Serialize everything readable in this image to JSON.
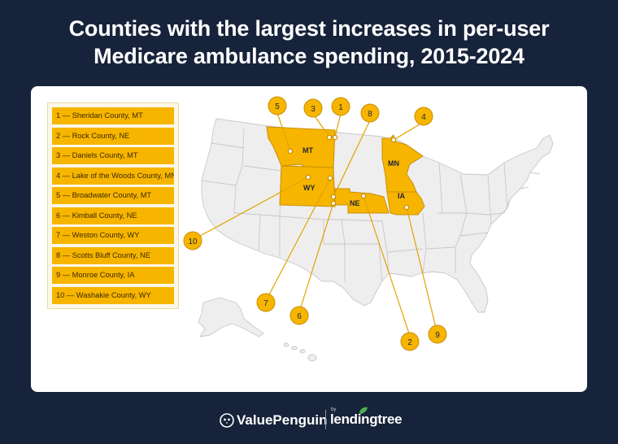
{
  "title": {
    "line1": "Counties with the largest increases in per-user",
    "line2": "Medicare ambulance spending, 2015-2024"
  },
  "legend": [
    {
      "rank": 1,
      "label": "1 — Sheridan County, MT"
    },
    {
      "rank": 2,
      "label": "2 — Rock County, NE"
    },
    {
      "rank": 3,
      "label": "3 — Daniels County, MT"
    },
    {
      "rank": 4,
      "label": "4 — Lake of the Woods County, MN"
    },
    {
      "rank": 5,
      "label": "5 — Broadwater County, MT"
    },
    {
      "rank": 6,
      "label": "6 — Kimball County, NE"
    },
    {
      "rank": 7,
      "label": "7 — Weston County, WY"
    },
    {
      "rank": 8,
      "label": "8 — Scotts Bluff County, NE"
    },
    {
      "rank": 9,
      "label": "9 — Monroe County, IA"
    },
    {
      "rank": 10,
      "label": "10 — Washakie County, WY"
    }
  ],
  "highlighted_states": [
    {
      "abbr": "MT",
      "name": "Montana"
    },
    {
      "abbr": "WY",
      "name": "Wyoming"
    },
    {
      "abbr": "NE",
      "name": "Nebraska"
    },
    {
      "abbr": "MN",
      "name": "Minnesota"
    },
    {
      "abbr": "IA",
      "name": "Iowa"
    }
  ],
  "markers": [
    {
      "rank": "1",
      "county": "Sheridan County",
      "state": "MT"
    },
    {
      "rank": "2",
      "county": "Rock County",
      "state": "NE"
    },
    {
      "rank": "3",
      "county": "Daniels County",
      "state": "MT"
    },
    {
      "rank": "4",
      "county": "Lake of the Woods County",
      "state": "MN"
    },
    {
      "rank": "5",
      "county": "Broadwater County",
      "state": "MT"
    },
    {
      "rank": "6",
      "county": "Kimball County",
      "state": "NE"
    },
    {
      "rank": "7",
      "county": "Weston County",
      "state": "WY"
    },
    {
      "rank": "8",
      "county": "Scotts Bluff County",
      "state": "NE"
    },
    {
      "rank": "9",
      "county": "Monroe County",
      "state": "IA"
    },
    {
      "rank": "10",
      "county": "Washakie County",
      "state": "WY"
    }
  ],
  "colors": {
    "background": "#16233a",
    "highlight": "#f7b500",
    "state_fill": "#eeeeee",
    "state_stroke": "#c8c8c8"
  },
  "footer": {
    "brand": "ValuePenguin",
    "by": "by",
    "partner": "lendingtree"
  }
}
